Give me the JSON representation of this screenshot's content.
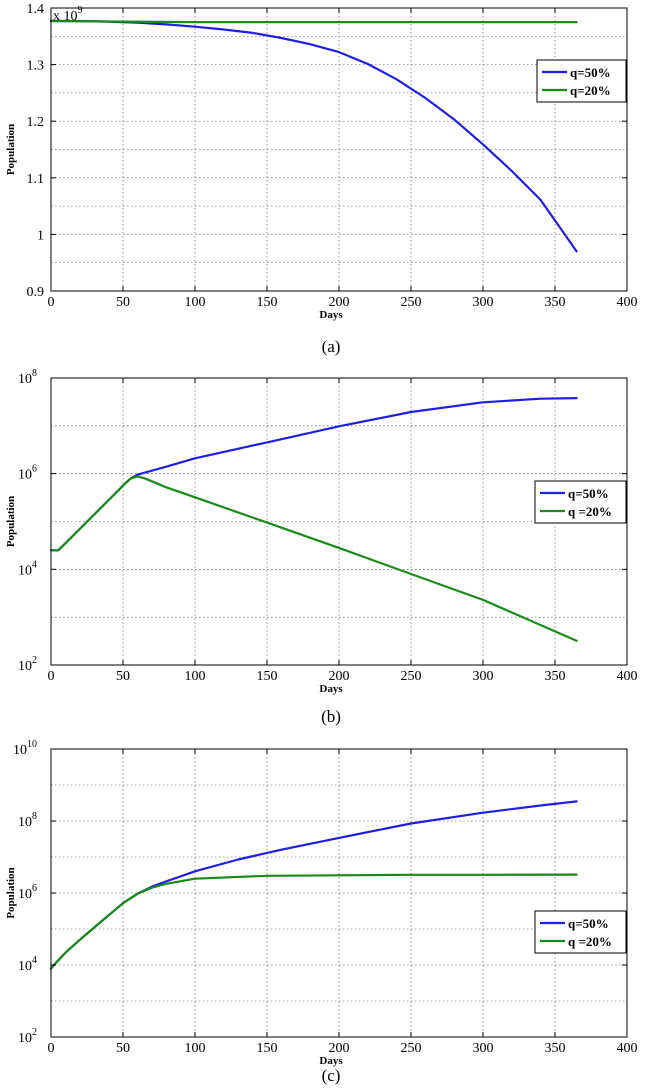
{
  "chart_data": [
    {
      "type": "line",
      "panel": "(a)",
      "caption": "(a)",
      "xlabel": "Days",
      "ylabel": "Population",
      "y_multiplier_label": "x 10",
      "y_multiplier_exponent": "9",
      "xlim": [
        0,
        400
      ],
      "ylim": [
        0.9,
        1.4
      ],
      "yscale": "linear",
      "x_ticks": [
        "0",
        "50",
        "100",
        "150",
        "200",
        "250",
        "300",
        "350",
        "400"
      ],
      "y_ticks": [
        "0.9",
        "1",
        "1.1",
        "1.2",
        "1.3",
        "1.4"
      ],
      "grid": true,
      "legend_position": "right",
      "series": [
        {
          "name": "q=50%",
          "color": "#1f1fe0",
          "x": [
            0,
            20,
            40,
            60,
            80,
            100,
            120,
            140,
            160,
            180,
            200,
            220,
            240,
            260,
            280,
            300,
            320,
            340,
            365
          ],
          "y": [
            1.377,
            1.377,
            1.376,
            1.374,
            1.371,
            1.367,
            1.362,
            1.356,
            1.347,
            1.336,
            1.322,
            1.301,
            1.274,
            1.241,
            1.203,
            1.159,
            1.112,
            1.061,
            0.97
          ]
        },
        {
          "name": "q=20%",
          "color": "#1a8a1a",
          "x": [
            0,
            50,
            100,
            150,
            200,
            250,
            300,
            365
          ],
          "y": [
            1.377,
            1.376,
            1.375,
            1.375,
            1.375,
            1.375,
            1.375,
            1.375
          ]
        }
      ]
    },
    {
      "type": "line",
      "panel": "(b)",
      "caption": "(b)",
      "xlabel": "Days",
      "ylabel": "Population",
      "xlim": [
        0,
        400
      ],
      "ylim": [
        100,
        100000000
      ],
      "yscale": "log",
      "x_ticks": [
        "0",
        "50",
        "100",
        "150",
        "200",
        "250",
        "300",
        "350",
        "400"
      ],
      "y_ticks": [
        {
          "base": "10",
          "exp": "2"
        },
        {
          "base": "10",
          "exp": "4"
        },
        {
          "base": "10",
          "exp": "6"
        },
        {
          "base": "10",
          "exp": "8"
        }
      ],
      "grid": true,
      "legend_position": "right",
      "series": [
        {
          "name": "q=50%",
          "color": "#1f1fe0",
          "x": [
            0,
            5,
            10,
            20,
            30,
            40,
            50,
            55,
            60,
            80,
            100,
            150,
            200,
            250,
            300,
            340,
            365
          ],
          "y": [
            25000,
            25000,
            35000,
            70000,
            140000,
            280000,
            560000,
            780000,
            950000,
            1400000,
            2100000,
            4500000,
            9800000,
            19500000,
            31000000,
            37000000,
            38000000
          ]
        },
        {
          "name": "q =20%",
          "color": "#1a8a1a",
          "x": [
            0,
            5,
            10,
            20,
            30,
            40,
            50,
            55,
            60,
            65,
            80,
            100,
            150,
            200,
            250,
            300,
            365
          ],
          "y": [
            25000,
            25000,
            35000,
            70000,
            140000,
            280000,
            560000,
            780000,
            880000,
            800000,
            520000,
            320000,
            95000,
            28000,
            8000,
            2300,
            320
          ]
        }
      ]
    },
    {
      "type": "line",
      "panel": "(c)",
      "caption": "(c)",
      "xlabel": "Days",
      "ylabel": "Population",
      "xlim": [
        0,
        400
      ],
      "ylim": [
        100,
        10000000000
      ],
      "yscale": "log",
      "x_ticks": [
        "0",
        "50",
        "100",
        "150",
        "200",
        "250",
        "300",
        "350",
        "400"
      ],
      "y_ticks": [
        {
          "base": "10",
          "exp": "2"
        },
        {
          "base": "10",
          "exp": "4"
        },
        {
          "base": "10",
          "exp": "6"
        },
        {
          "base": "10",
          "exp": "8"
        },
        {
          "base": "10",
          "exp": "10"
        }
      ],
      "grid": true,
      "legend_position": "lower right",
      "series": [
        {
          "name": "q=50%",
          "color": "#1f1fe0",
          "x": [
            0,
            3,
            10,
            20,
            30,
            40,
            50,
            60,
            70,
            80,
            100,
            130,
            160,
            200,
            250,
            300,
            340,
            365
          ],
          "y": [
            8000,
            11000,
            22000,
            50000,
            110000,
            240000,
            520000,
            950000,
            1500000,
            2100000,
            4000000,
            8500000,
            16000000,
            34000000,
            85000000,
            170000000,
            270000000,
            350000000
          ]
        },
        {
          "name": "q =20%",
          "color": "#1a8a1a",
          "x": [
            0,
            3,
            10,
            20,
            30,
            40,
            50,
            60,
            70,
            80,
            100,
            150,
            200,
            250,
            300,
            365
          ],
          "y": [
            8000,
            11000,
            22000,
            50000,
            110000,
            240000,
            520000,
            950000,
            1400000,
            1800000,
            2500000,
            3000000,
            3100000,
            3200000,
            3200000,
            3250000
          ]
        }
      ]
    }
  ]
}
